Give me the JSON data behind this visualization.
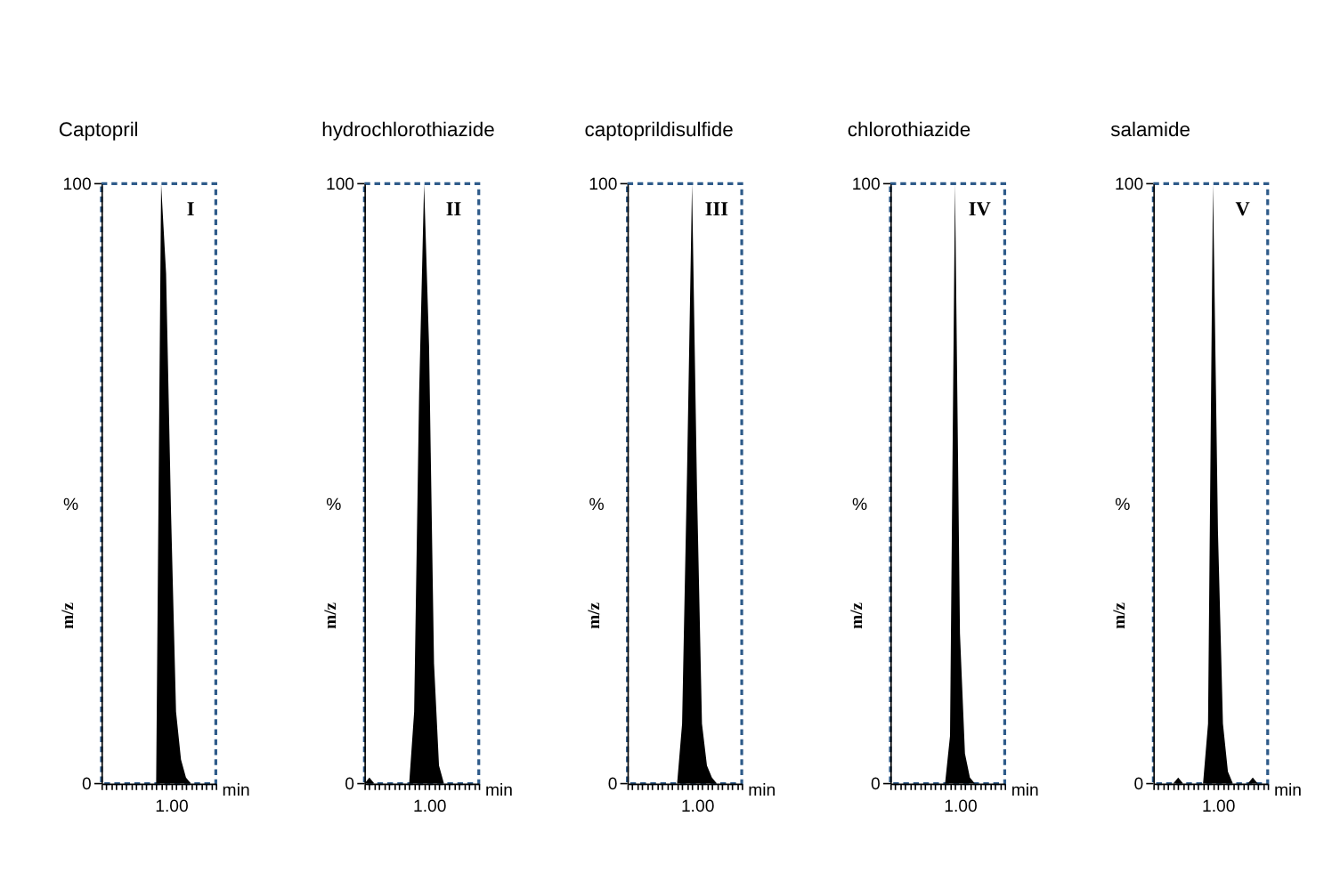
{
  "chart_data": [
    {
      "type": "area",
      "title": "Captopril",
      "xlabel": "min",
      "ylabel": "%",
      "annotations": [
        "I",
        "m/z"
      ],
      "categories": [
        null,
        null,
        null,
        null,
        null,
        null,
        null,
        null,
        null,
        null,
        null,
        null,
        null,
        null,
        "1.00",
        null,
        null,
        null,
        null,
        null,
        null,
        null,
        null,
        null
      ],
      "series": [
        {
          "color": "#000000",
          "values": [
            0,
            0,
            0,
            0,
            0,
            0,
            0,
            0,
            0,
            0,
            0,
            0,
            100,
            85,
            45,
            12,
            4,
            1,
            0,
            0,
            0,
            0,
            0,
            0
          ]
        }
      ],
      "ylim": [
        0,
        100
      ],
      "yticks": [
        0,
        100
      ],
      "grid": false
    },
    {
      "type": "area",
      "title": "hydrochlorothiazide",
      "xlabel": "min",
      "ylabel": "%",
      "annotations": [
        "II",
        "m/z"
      ],
      "categories": [
        null,
        null,
        null,
        null,
        null,
        null,
        null,
        null,
        null,
        null,
        null,
        null,
        null,
        "1.00",
        null,
        null,
        null,
        null,
        null,
        null,
        null,
        null,
        null,
        null
      ],
      "series": [
        {
          "color": "#000000",
          "values": [
            0,
            1,
            0,
            0,
            0,
            0,
            0,
            0,
            0,
            0,
            12,
            65,
            100,
            73,
            20,
            3,
            0,
            0,
            0,
            0,
            0,
            0,
            0,
            0
          ]
        }
      ],
      "ylim": [
        0,
        100
      ],
      "yticks": [
        0,
        100
      ],
      "grid": false
    },
    {
      "type": "area",
      "title": "captoprildisulfide",
      "xlabel": "min",
      "ylabel": "%",
      "annotations": [
        "III",
        "m/z"
      ],
      "categories": [
        null,
        null,
        null,
        null,
        null,
        null,
        null,
        null,
        null,
        null,
        null,
        null,
        null,
        null,
        "1.00",
        null,
        null,
        null,
        null,
        null,
        null,
        null,
        null,
        null
      ],
      "series": [
        {
          "color": "#000000",
          "values": [
            0,
            0,
            0,
            0,
            0,
            0,
            0,
            0,
            0,
            0,
            0,
            10,
            52,
            100,
            49,
            10,
            3,
            1,
            0,
            0,
            0,
            0,
            0,
            0
          ]
        }
      ],
      "ylim": [
        0,
        100
      ],
      "yticks": [
        0,
        100
      ],
      "grid": false
    },
    {
      "type": "area",
      "title": "chlorothiazide",
      "xlabel": "min",
      "ylabel": "%",
      "annotations": [
        "IV",
        "m/z"
      ],
      "categories": [
        null,
        null,
        null,
        null,
        null,
        null,
        null,
        null,
        null,
        null,
        null,
        null,
        null,
        null,
        "1.00",
        null,
        null,
        null,
        null,
        null,
        null,
        null,
        null,
        null
      ],
      "series": [
        {
          "color": "#000000",
          "values": [
            0,
            0,
            0,
            0,
            0,
            0,
            0,
            0,
            0,
            0,
            0,
            0,
            8,
            100,
            25,
            5,
            1,
            0,
            0,
            0,
            0,
            0,
            0,
            0
          ]
        }
      ],
      "ylim": [
        0,
        100
      ],
      "yticks": [
        0,
        100
      ],
      "grid": false
    },
    {
      "type": "area",
      "title": "salamide",
      "xlabel": "min",
      "ylabel": "%",
      "annotations": [
        "V",
        "m/z"
      ],
      "categories": [
        null,
        null,
        null,
        null,
        null,
        null,
        null,
        null,
        null,
        null,
        null,
        null,
        null,
        "1.00",
        null,
        null,
        null,
        null,
        null,
        null,
        null,
        null,
        null,
        null
      ],
      "series": [
        {
          "color": "#000000",
          "values": [
            0,
            0,
            0,
            0,
            0,
            1,
            0,
            0,
            0,
            0,
            0,
            10,
            100,
            42,
            10,
            2,
            0,
            0,
            0,
            0,
            1,
            0,
            0,
            0
          ]
        }
      ],
      "ylim": [
        0,
        100
      ],
      "yticks": [
        0,
        100
      ],
      "grid": false
    }
  ]
}
